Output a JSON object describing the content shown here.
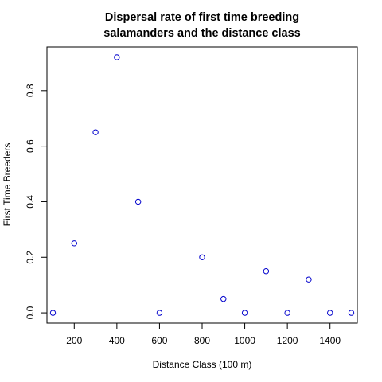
{
  "chart_data": {
    "type": "scatter",
    "title_lines": [
      "Dispersal rate of first time breeding",
      "salamanders and the distance class"
    ],
    "xlabel": "Distance Class (100 m)",
    "ylabel": "First Time Breeders",
    "xlim": [
      72,
      1528
    ],
    "ylim": [
      -0.037,
      0.957
    ],
    "x_ticks": [
      200,
      400,
      600,
      800,
      1000,
      1200,
      1400
    ],
    "x_tick_labels": [
      "200",
      "400",
      "600",
      "800",
      "1000",
      "1200",
      "1400"
    ],
    "y_ticks": [
      0.0,
      0.2,
      0.4,
      0.6,
      0.8
    ],
    "y_tick_labels": [
      "0.0",
      "0.2",
      "0.4",
      "0.6",
      "0.8"
    ],
    "grid": false,
    "point_color": "#0000cc",
    "x": [
      100,
      200,
      300,
      400,
      500,
      600,
      800,
      900,
      1000,
      1100,
      1200,
      1300,
      1400,
      1500
    ],
    "y": [
      0.0,
      0.25,
      0.65,
      0.92,
      0.4,
      0.0,
      0.2,
      0.05,
      0.0,
      0.15,
      0.0,
      0.12,
      0.0,
      0.0
    ]
  }
}
